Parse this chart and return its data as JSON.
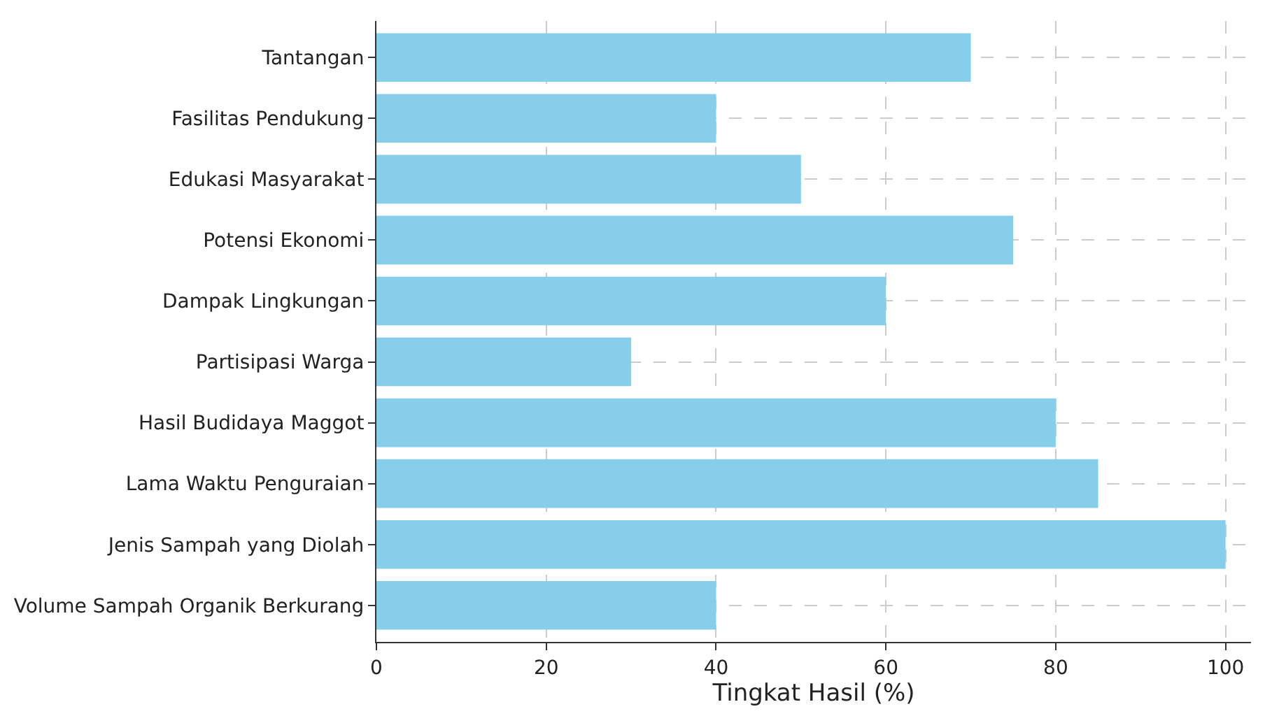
{
  "chart_data": {
    "type": "bar",
    "orientation": "horizontal",
    "xlabel": "Tingkat Hasil (%)",
    "categories": [
      "Tantangan",
      "Fasilitas Pendukung",
      "Edukasi Masyarakat",
      "Potensi Ekonomi",
      "Dampak Lingkungan",
      "Partisipasi Warga",
      "Hasil Budidaya Maggot",
      "Lama Waktu Penguraian",
      "Jenis Sampah yang Diolah",
      "Volume Sampah Organik Berkurang"
    ],
    "values": [
      70,
      40,
      50,
      75,
      60,
      30,
      80,
      85,
      100,
      40
    ],
    "color": "#87ceeb",
    "xlim": [
      0,
      103
    ],
    "xticks": [
      0,
      20,
      40,
      60,
      80,
      100
    ],
    "grid": true
  }
}
